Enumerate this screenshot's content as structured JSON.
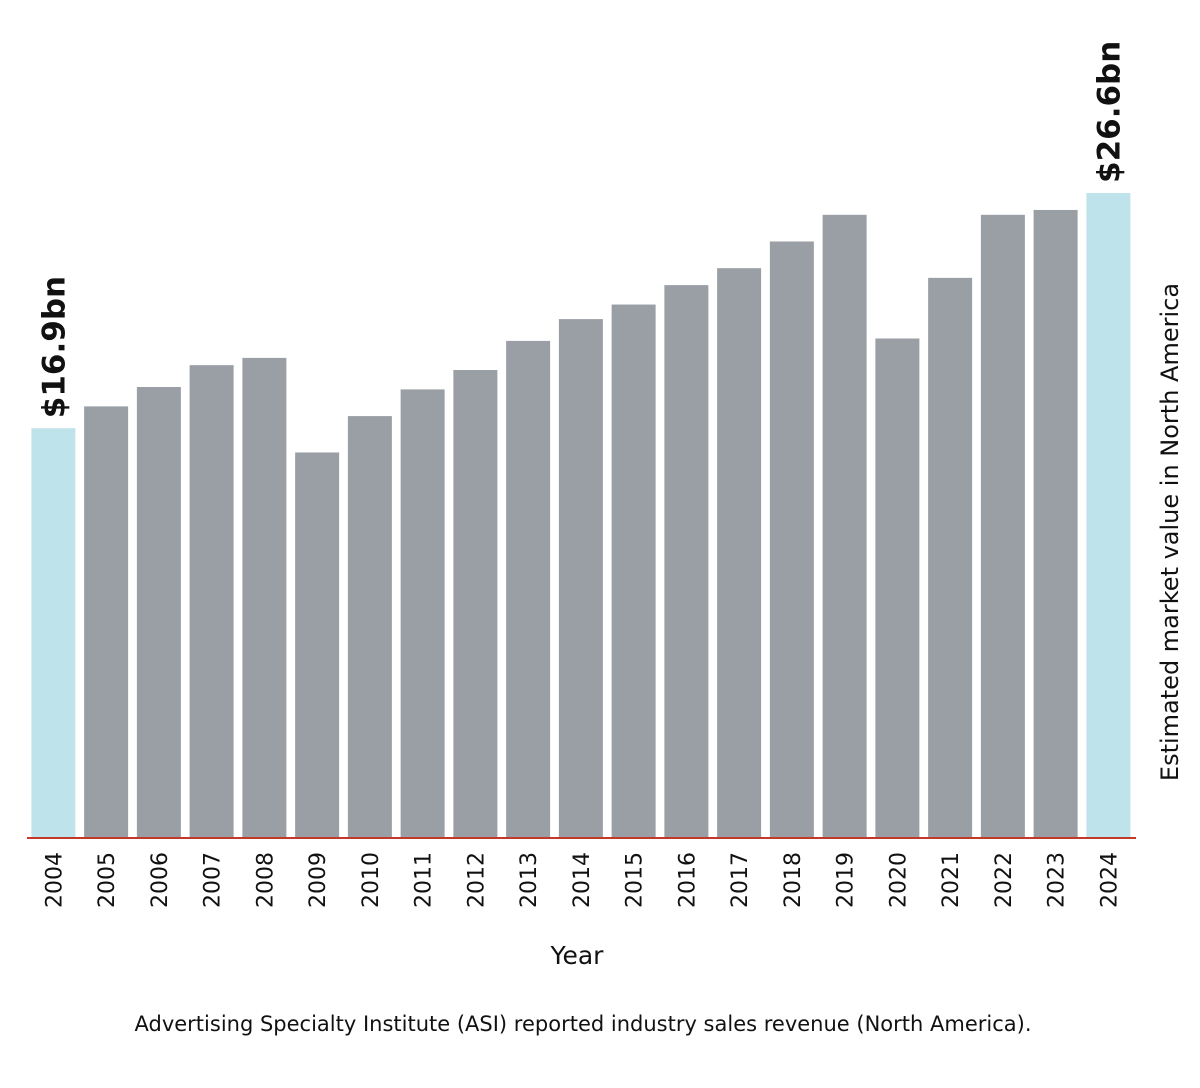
{
  "chart_data": {
    "type": "bar",
    "categories": [
      "2004",
      "2005",
      "2006",
      "2007",
      "2008",
      "2009",
      "2010",
      "2011",
      "2012",
      "2013",
      "2014",
      "2015",
      "2016",
      "2017",
      "2018",
      "2019",
      "2020",
      "2021",
      "2022",
      "2023",
      "2024"
    ],
    "values": [
      16.9,
      17.8,
      18.6,
      19.5,
      19.8,
      15.9,
      17.4,
      18.5,
      19.3,
      20.5,
      21.4,
      22.0,
      22.8,
      23.5,
      24.6,
      25.7,
      20.6,
      23.1,
      25.7,
      25.9,
      26.6
    ],
    "value_labels": [
      "$16.9bn",
      null,
      null,
      null,
      null,
      null,
      null,
      null,
      null,
      null,
      null,
      null,
      null,
      null,
      null,
      null,
      null,
      null,
      null,
      null,
      "$26.6bn"
    ],
    "colors": [
      "#bfe3eb",
      "#9a9fa6",
      "#9a9fa6",
      "#9a9fa6",
      "#9a9fa6",
      "#9a9fa6",
      "#9a9fa6",
      "#9a9fa6",
      "#9a9fa6",
      "#9a9fa6",
      "#9a9fa6",
      "#9a9fa6",
      "#9a9fa6",
      "#9a9fa6",
      "#9a9fa6",
      "#9a9fa6",
      "#9a9fa6",
      "#9a9fa6",
      "#9a9fa6",
      "#9a9fa6",
      "#bfe3eb"
    ],
    "axis_color": "#c0392b",
    "x_label": "Year",
    "y_label": "Estimated market value in North America",
    "caption": "Advertising Specialty Institute (ASI) reported industry sales revenue (North America)."
  }
}
